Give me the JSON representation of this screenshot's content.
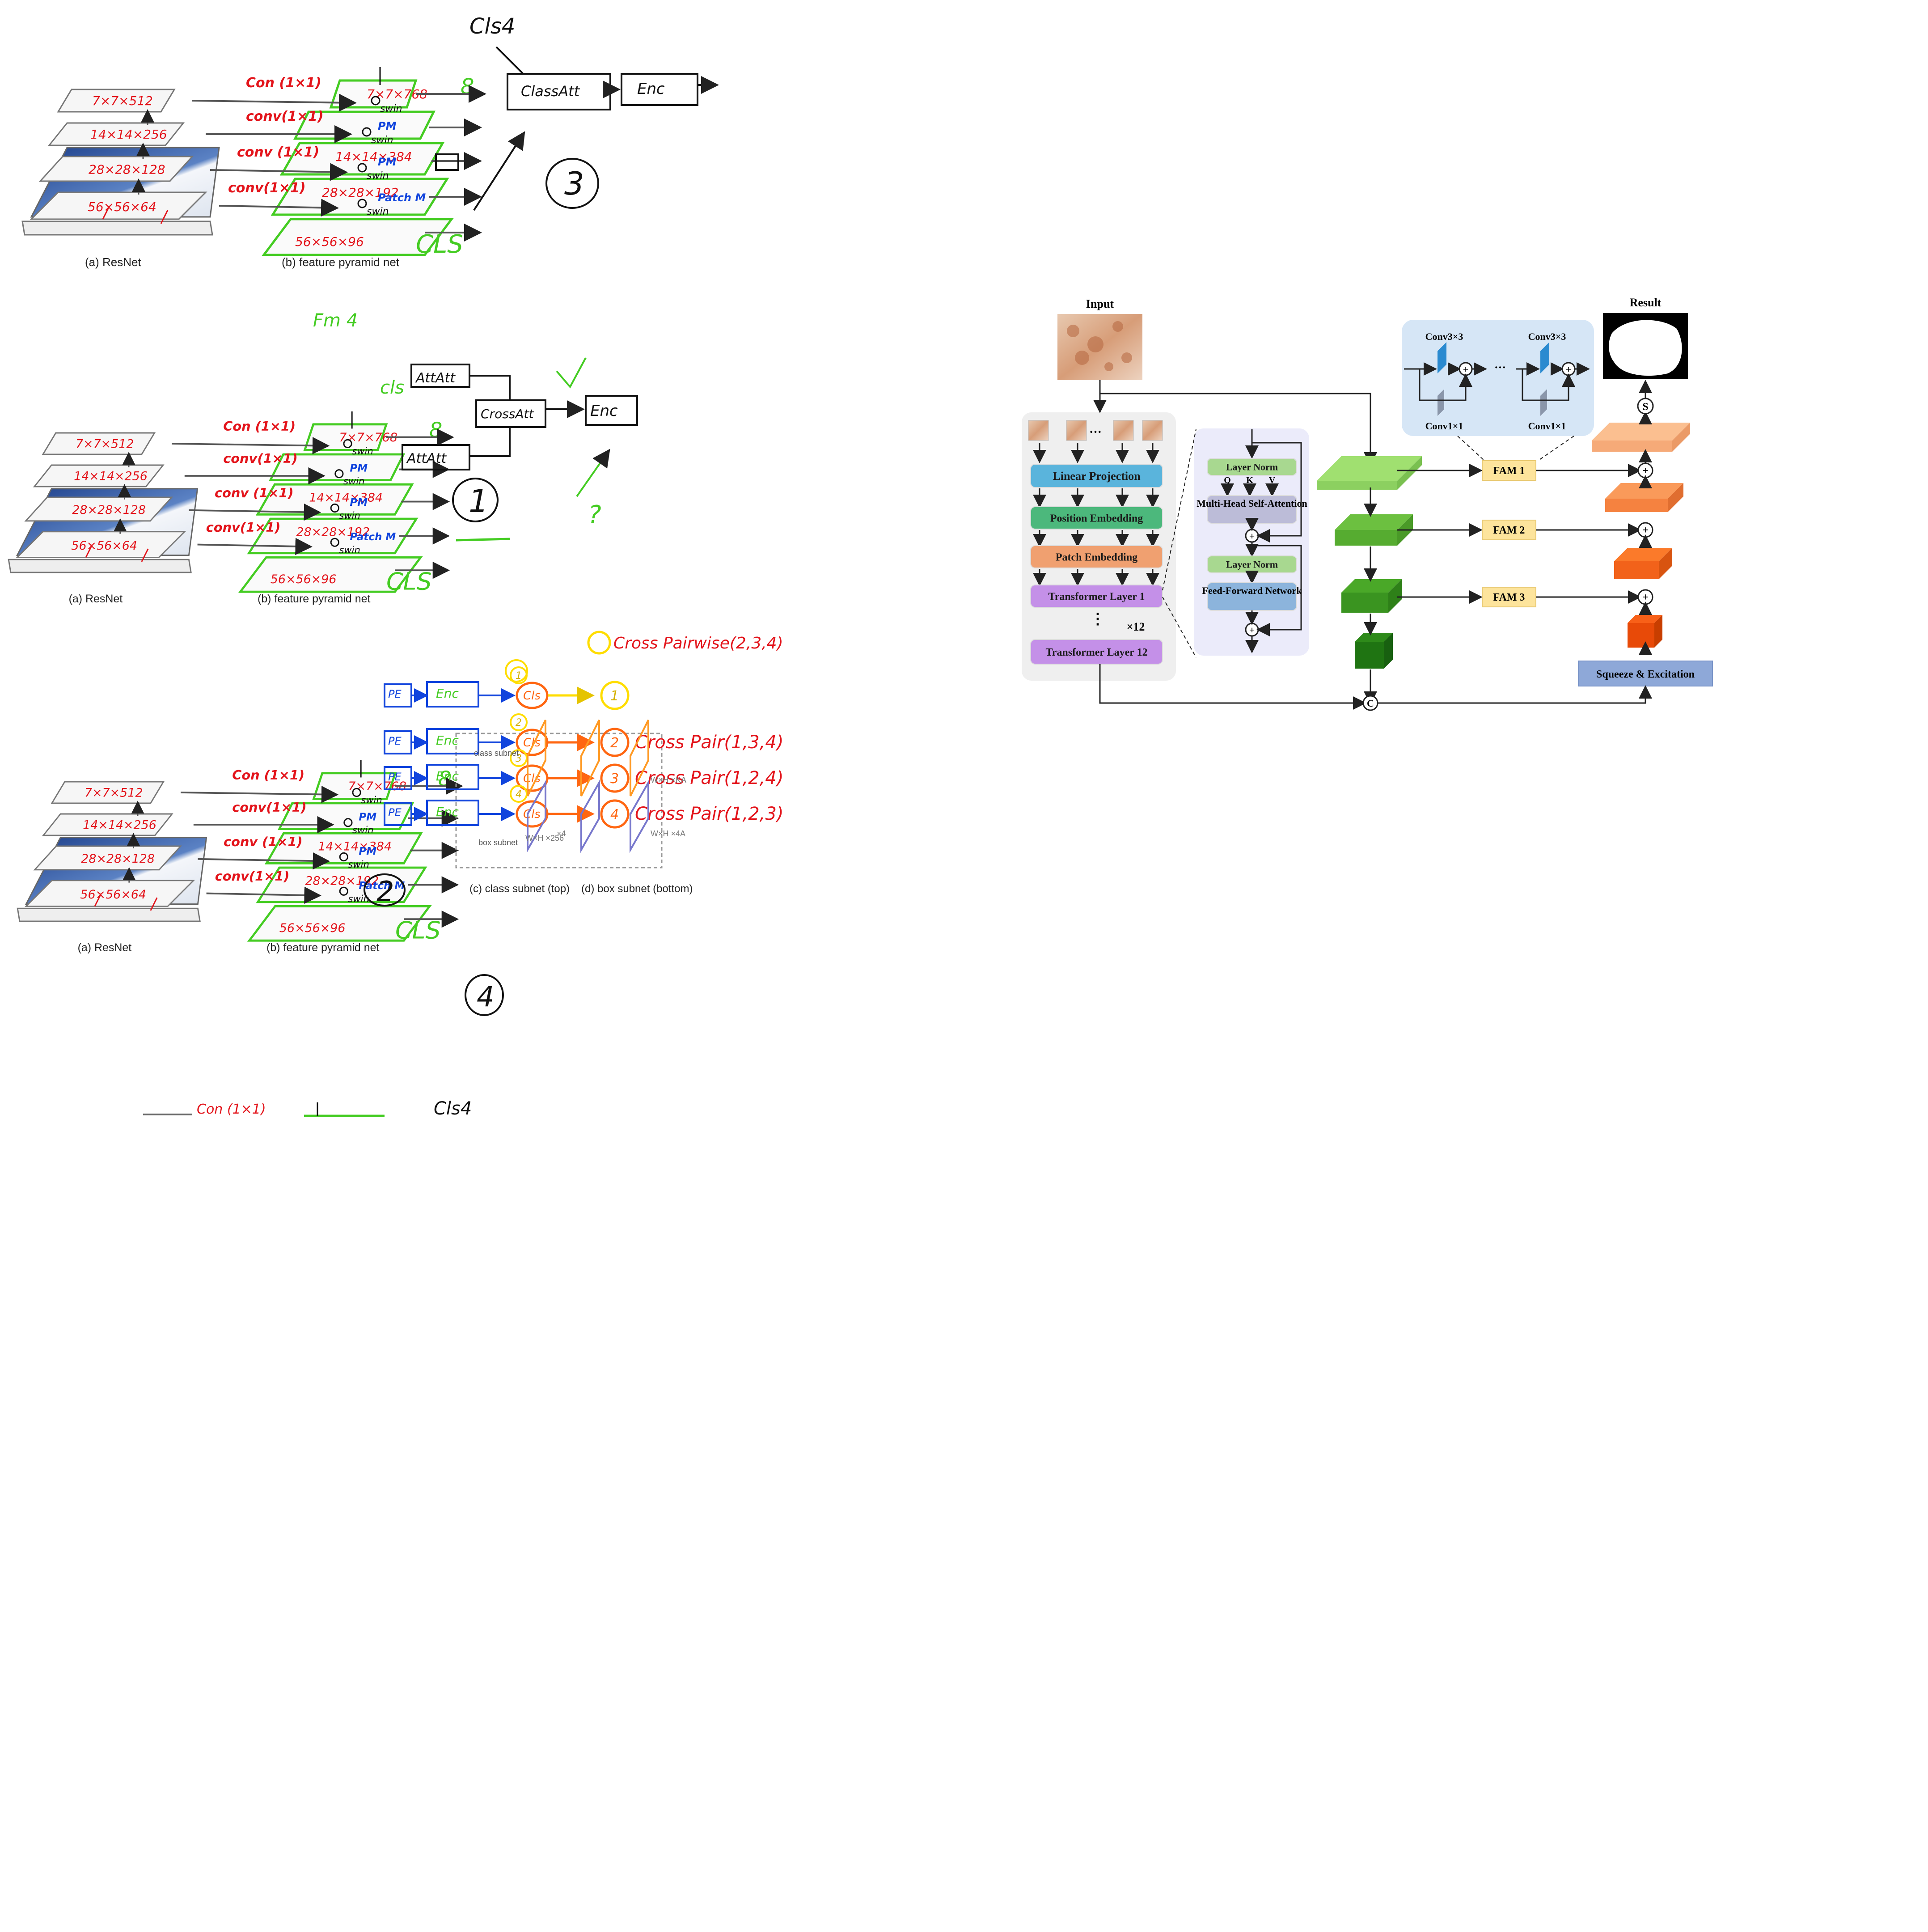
{
  "colors": {
    "red": "#e3141b",
    "green": "#44cc22",
    "blue": "#1144dd",
    "orange": "#ff6611",
    "yellow": "#ffdd00",
    "black": "#111111",
    "gray": "#666666"
  },
  "pyramid_stack": {
    "resnet_layers": [
      "7×7×512",
      "14×14×256",
      "28×28×128",
      "56×56×64"
    ],
    "conv_labels": [
      "Con (1×1)",
      "conv(1×1)",
      "conv (1×1)",
      "conv(1×1)"
    ],
    "fpn_layers": [
      "7×7×768",
      "14×14×384",
      "28×28×192",
      "56×56×96"
    ],
    "swin_label": "swin",
    "pm_label": "PM",
    "patch_m_label": "Patch M",
    "cls_label": "CLS",
    "caption_resnet": "(a) ResNet",
    "caption_fpn": "(b) feature pyramid net"
  },
  "sketch1": {
    "cls4": "Cls4",
    "class_att": "ClassAtt",
    "enc": "Enc",
    "number": "3"
  },
  "sketch2": {
    "fm4": "Fm 4",
    "cls": "cls",
    "att_top": "AttAtt",
    "att_bottom": "AttAtt",
    "cross_att": "CrossAtt",
    "enc": "Enc",
    "number": "1",
    "q_mark": "?"
  },
  "sketch3": {
    "legend": "Cross Pairwise(2,3,4)",
    "rows": [
      {
        "c1": "1",
        "c2": "1",
        "pair": ""
      },
      {
        "c1": "2",
        "c2": "2",
        "pair": "Cross Pair(1,3,4)"
      },
      {
        "c1": "3",
        "c2": "3",
        "pair": "Cross Pair(1,2,4)"
      },
      {
        "c1": "4",
        "c2": "4",
        "pair": "Cross Pair(1,2,3)"
      }
    ],
    "pe": "PE",
    "enc": "Enc",
    "cls": "Cls",
    "class_subnet": "class subnet",
    "box_subnet": "box subnet",
    "whk": "W×H ×KA",
    "wh256": "W×H ×256",
    "wh4a": "W×H ×4A",
    "x4": "×4",
    "caption_class": "(c) class subnet (top)",
    "caption_box": "(d) box subnet (bottom)",
    "number": "2"
  },
  "number4": "4",
  "partial_row": {
    "con": "Con (1×1)",
    "cls4": "Cls4"
  },
  "arch": {
    "input": "Input",
    "result": "Result",
    "linear_projection": "Linear Projection",
    "position_embedding": "Position Embedding",
    "patch_embedding": "Patch Embedding",
    "transformer_layer_1": "Transformer  Layer 1",
    "x12": "×12",
    "transformer_layer_12": "Transformer  Layer 12",
    "layer_norm": "Layer Norm",
    "qkv": [
      "Q",
      "K",
      "V"
    ],
    "mhsa": "Multi-Head Self-Attention",
    "ffn": "Feed-Forward Network",
    "fam": [
      "FAM 1",
      "FAM 2",
      "FAM 3"
    ],
    "conv3": "Conv3×3",
    "conv1": "Conv1×1",
    "dots": "···",
    "se": "Squeeze & Excitation",
    "s_symbol": "S",
    "c_symbol": "C",
    "colors": {
      "linear": "#5ab4dc",
      "position": "#4cb87c",
      "patch": "#f0a070",
      "transformer": "#c490e8",
      "panel": "#efefef",
      "attnpanel": "#ebebfa",
      "layernorm": "#a8d890",
      "mhsa": "#bcbcd8",
      "ffn": "#8cb4dc",
      "fam": "#fde49c",
      "se": "#8ea8d8",
      "convpanel": "#d6e6f6"
    }
  }
}
